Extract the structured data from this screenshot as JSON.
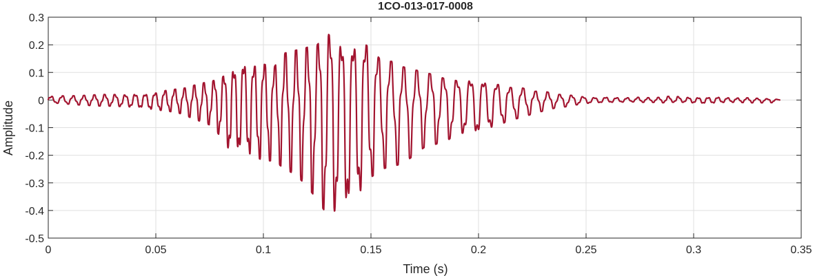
{
  "chart_data": {
    "type": "line",
    "title": "1CO-013-017-0008",
    "xlabel": "Time (s)",
    "ylabel": "Amplitude",
    "xlim": [
      0,
      0.35
    ],
    "ylim": [
      -0.5,
      0.3
    ],
    "xticks": [
      0,
      0.05,
      0.1,
      0.15,
      0.2,
      0.25,
      0.3,
      0.35
    ],
    "xtick_labels": [
      "0",
      "0.05",
      "0.1",
      "0.15",
      "0.2",
      "0.25",
      "0.3",
      "0.35"
    ],
    "yticks": [
      -0.5,
      -0.4,
      -0.3,
      -0.2,
      -0.1,
      0,
      0.1,
      0.2,
      0.3
    ],
    "ytick_labels": [
      "-0.5",
      "-0.4",
      "-0.3",
      "-0.2",
      "-0.1",
      "0",
      "0.1",
      "0.2",
      "0.3"
    ],
    "grid": true,
    "line_color": "#A2142F",
    "series": [
      {
        "x": [
          0,
          0.005,
          0.01,
          0.015,
          0.02,
          0.025,
          0.03,
          0.035,
          0.04,
          0.045,
          0.05,
          0.055,
          0.06,
          0.065,
          0.07,
          0.075,
          0.08,
          0.085,
          0.09,
          0.095,
          0.1,
          0.105,
          0.11,
          0.115,
          0.12,
          0.125,
          0.13,
          0.135,
          0.14,
          0.145,
          0.15,
          0.155,
          0.16,
          0.165,
          0.17,
          0.175,
          0.18,
          0.185,
          0.19,
          0.195,
          0.2,
          0.205,
          0.21,
          0.215,
          0.22,
          0.225,
          0.23,
          0.235,
          0.24,
          0.245,
          0.25,
          0.255,
          0.26,
          0.265,
          0.27,
          0.275,
          0.28,
          0.285,
          0.29,
          0.295,
          0.3,
          0.305,
          0.31,
          0.315,
          0.32,
          0.325,
          0.33,
          0.335,
          0.34
        ],
        "envelope_max": [
          0.012,
          0.015,
          0.015,
          0.016,
          0.018,
          0.02,
          0.02,
          0.018,
          0.02,
          0.02,
          0.025,
          0.035,
          0.04,
          0.045,
          0.06,
          0.065,
          0.08,
          0.1,
          0.13,
          0.12,
          0.13,
          0.12,
          0.17,
          0.18,
          0.19,
          0.2,
          0.24,
          0.2,
          0.18,
          0.21,
          0.19,
          0.14,
          0.14,
          0.12,
          0.11,
          0.1,
          0.09,
          0.075,
          0.07,
          0.07,
          0.07,
          0.06,
          0.055,
          0.045,
          0.045,
          0.03,
          0.035,
          0.02,
          0.02,
          0.015,
          0.01,
          0.008,
          0.01,
          0.008,
          0.008,
          0.01,
          0.008,
          0.01,
          0.015,
          0.01,
          0.008,
          0.008,
          0.01,
          0.008,
          0.007,
          0.008,
          0.006,
          0.004,
          0.002
        ],
        "envelope_min": [
          -0.01,
          -0.012,
          -0.015,
          -0.018,
          -0.02,
          -0.022,
          -0.022,
          -0.024,
          -0.025,
          -0.03,
          -0.035,
          -0.04,
          -0.045,
          -0.06,
          -0.075,
          -0.09,
          -0.13,
          -0.19,
          -0.18,
          -0.2,
          -0.22,
          -0.22,
          -0.25,
          -0.27,
          -0.31,
          -0.36,
          -0.42,
          -0.39,
          -0.38,
          -0.33,
          -0.28,
          -0.25,
          -0.24,
          -0.23,
          -0.2,
          -0.17,
          -0.16,
          -0.15,
          -0.12,
          -0.12,
          -0.12,
          -0.1,
          -0.09,
          -0.07,
          -0.065,
          -0.05,
          -0.04,
          -0.03,
          -0.025,
          -0.018,
          -0.012,
          -0.01,
          -0.008,
          -0.008,
          -0.006,
          -0.008,
          -0.008,
          -0.01,
          -0.008,
          -0.008,
          -0.01,
          -0.012,
          -0.01,
          -0.008,
          -0.008,
          -0.01,
          -0.01,
          -0.01,
          -0.008
        ]
      }
    ]
  }
}
